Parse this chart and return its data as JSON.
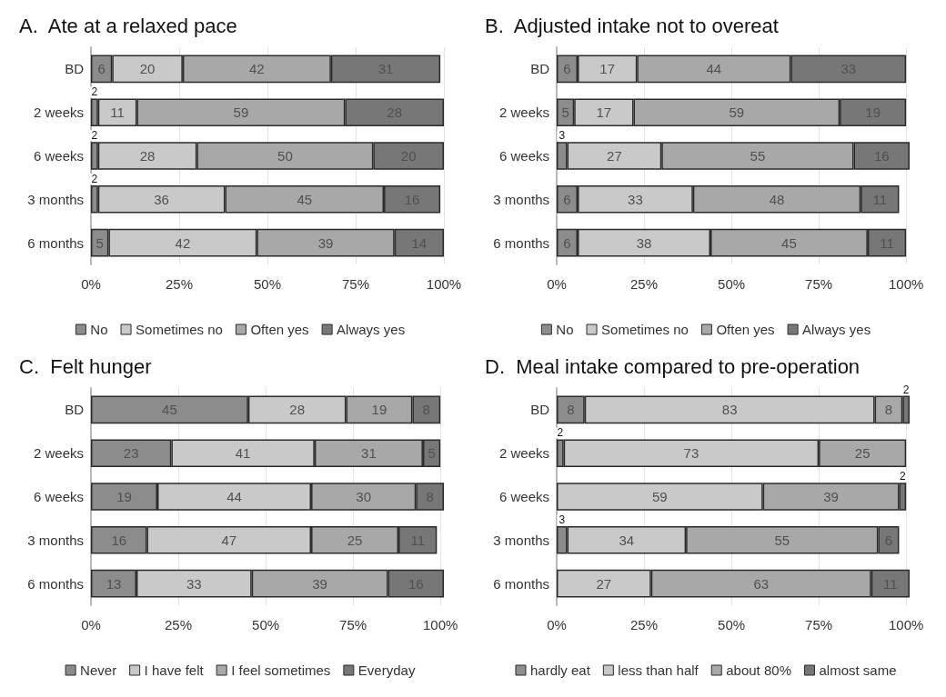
{
  "chart_data": [
    {
      "type": "bar",
      "orientation": "horizontal",
      "stacked": true,
      "title": "A.  Ate at a relaxed pace",
      "categories": [
        "BD",
        "2 weeks",
        "6 weeks",
        "3 months",
        "6 months"
      ],
      "series": [
        {
          "name": "No",
          "color": "#8c8c8c",
          "values": [
            6,
            2,
            2,
            2,
            5
          ]
        },
        {
          "name": "Sometimes no",
          "color": "#c9c9c9",
          "values": [
            20,
            11,
            28,
            36,
            42
          ]
        },
        {
          "name": "Often yes",
          "color": "#a8a8a8",
          "values": [
            42,
            59,
            50,
            45,
            39
          ]
        },
        {
          "name": "Always yes",
          "color": "#777777",
          "values": [
            31,
            28,
            20,
            16,
            14
          ]
        }
      ],
      "xlim": [
        0,
        100
      ],
      "xticks": [
        {
          "value": 0,
          "label": "0%"
        },
        {
          "value": 25,
          "label": "25%"
        },
        {
          "value": 50,
          "label": "50%"
        },
        {
          "value": 75,
          "label": "75%"
        },
        {
          "value": 100,
          "label": "100%"
        }
      ],
      "grid": "x",
      "legend": "bottom",
      "data_labels": true
    },
    {
      "type": "bar",
      "orientation": "horizontal",
      "stacked": true,
      "title": "B.  Adjusted intake not to overeat",
      "categories": [
        "BD",
        "2 weeks",
        "6 weeks",
        "3 months",
        "6 months"
      ],
      "series": [
        {
          "name": "No",
          "color": "#8c8c8c",
          "values": [
            6,
            5,
            3,
            6,
            6
          ]
        },
        {
          "name": "Sometimes no",
          "color": "#c9c9c9",
          "values": [
            17,
            17,
            27,
            33,
            38
          ]
        },
        {
          "name": "Often yes",
          "color": "#a8a8a8",
          "values": [
            44,
            59,
            55,
            48,
            45
          ]
        },
        {
          "name": "Always yes",
          "color": "#777777",
          "values": [
            33,
            19,
            16,
            11,
            11
          ]
        }
      ],
      "xlim": [
        0,
        101
      ],
      "xticks": [
        {
          "value": 0,
          "label": "0%"
        },
        {
          "value": 25,
          "label": "25%"
        },
        {
          "value": 50,
          "label": "50%"
        },
        {
          "value": 75,
          "label": "75%"
        },
        {
          "value": 100,
          "label": "100%"
        }
      ],
      "grid": "x",
      "legend": "bottom",
      "data_labels": true
    },
    {
      "type": "bar",
      "orientation": "horizontal",
      "stacked": true,
      "title": "C.  Felt hunger",
      "categories": [
        "BD",
        "2 weeks",
        "6 weeks",
        "3 months",
        "6 months"
      ],
      "series": [
        {
          "name": "Never",
          "color": "#8c8c8c",
          "values": [
            45,
            23,
            19,
            16,
            13
          ]
        },
        {
          "name": "I have felt",
          "color": "#c9c9c9",
          "values": [
            28,
            41,
            44,
            47,
            33
          ]
        },
        {
          "name": "I feel sometimes",
          "color": "#a8a8a8",
          "values": [
            19,
            31,
            30,
            25,
            39
          ]
        },
        {
          "name": "Everyday",
          "color": "#777777",
          "values": [
            8,
            5,
            8,
            11,
            16
          ]
        }
      ],
      "xlim": [
        0,
        101
      ],
      "xticks": [
        {
          "value": 0,
          "label": "0%"
        },
        {
          "value": 25,
          "label": "25%"
        },
        {
          "value": 50,
          "label": "50%"
        },
        {
          "value": 75,
          "label": "75%"
        },
        {
          "value": 100,
          "label": "100%"
        }
      ],
      "grid": "x",
      "legend": "bottom",
      "data_labels": true
    },
    {
      "type": "bar",
      "orientation": "horizontal",
      "stacked": true,
      "title": "D.  Meal intake compared to pre-operation",
      "categories": [
        "BD",
        "2 weeks",
        "6 weeks",
        "3 months",
        "6 months"
      ],
      "series": [
        {
          "name": "hardly eat",
          "color": "#8c8c8c",
          "values": [
            8,
            2,
            null,
            3,
            null
          ]
        },
        {
          "name": "less than half",
          "color": "#c9c9c9",
          "values": [
            83,
            73,
            59,
            34,
            27
          ]
        },
        {
          "name": "about 80%",
          "color": "#a8a8a8",
          "values": [
            8,
            25,
            39,
            55,
            63
          ]
        },
        {
          "name": "almost same",
          "color": "#777777",
          "values": [
            2,
            null,
            2,
            6,
            11
          ]
        }
      ],
      "xlim": [
        0,
        101
      ],
      "xticks": [
        {
          "value": 0,
          "label": "0%"
        },
        {
          "value": 25,
          "label": "25%"
        },
        {
          "value": 50,
          "label": "50%"
        },
        {
          "value": 75,
          "label": "75%"
        },
        {
          "value": 100,
          "label": "100%"
        }
      ],
      "grid": "x",
      "legend": "bottom",
      "data_labels": true
    }
  ]
}
